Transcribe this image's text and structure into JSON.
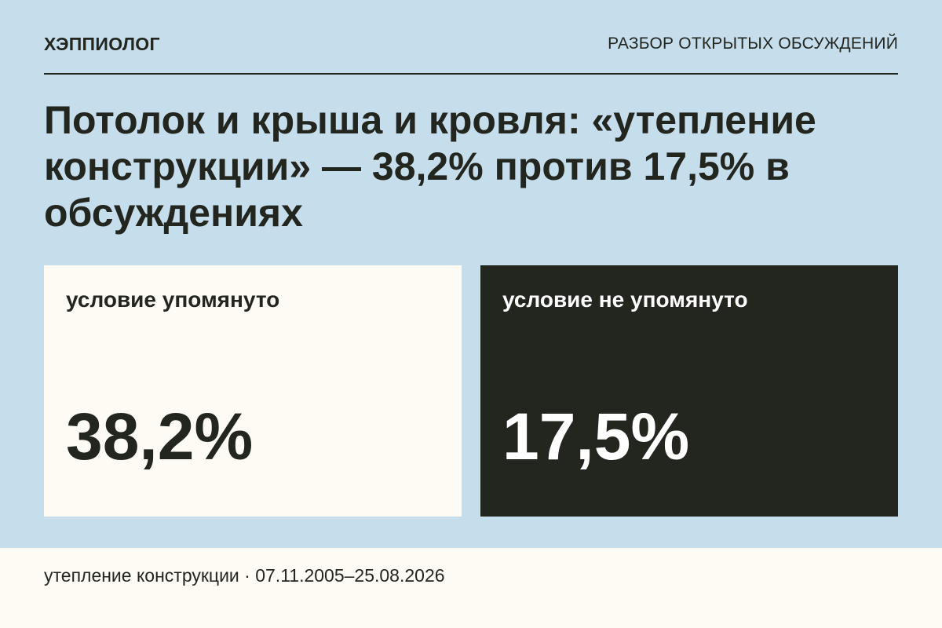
{
  "header": {
    "brand": "ХЭППИОЛОГ",
    "section": "РАЗБОР ОТКРЫТЫХ ОБСУЖДЕНИЙ"
  },
  "headline": "Потолок и крыша и кровля: «утепление конструкции» — 38,2% против 17,5% в обсуждениях",
  "cards": [
    {
      "label": "условие упомянуто",
      "value": "38,2%"
    },
    {
      "label": "условие не упомянуто",
      "value": "17,5%"
    }
  ],
  "footer": {
    "text": "утепление конструкции · 07.11.2005–25.08.2026"
  },
  "colors": {
    "background": "#c6ddec",
    "dark": "#23261f",
    "light": "#fdfbf3"
  }
}
